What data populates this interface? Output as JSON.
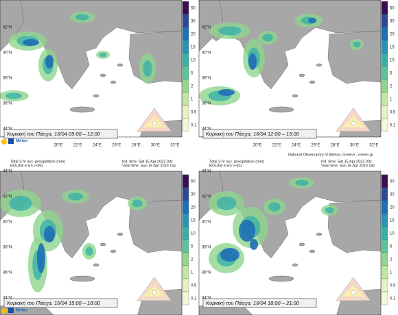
{
  "logo": "Meteo",
  "footer": "National Observatory of Athens, Greece - meteo.gr",
  "lat_labels": [
    "44°N",
    "42°N",
    "40°N",
    "38°N",
    "36°N",
    "34°N"
  ],
  "lon_labels": [
    "20°E",
    "22°E",
    "24°E",
    "26°E",
    "28°E",
    "30°E",
    "32°E"
  ],
  "colorbar_labels": [
    "50",
    "30",
    "20",
    "15",
    "10",
    "5",
    "2",
    "1",
    "0.5",
    "0.1"
  ],
  "panels": [
    {
      "caption": "Κυριακή του Πάσχα, 16/04 09:00 – 12:00"
    },
    {
      "caption": "Κυριακή του Πάσχα, 16/04 12:00 – 15:00"
    },
    {
      "caption": "Κυριακή του Πάσχα, 16/04 15:00 – 18:00",
      "header_left": [
        "Total 3-hr acc. precipitation (mm)",
        "BOLAM 6 km t+39z"
      ],
      "header_right": [
        "Init. time: Sat 15 Apr 2023 00z",
        "Valid time: Sun 16 Apr 2023 15z"
      ]
    },
    {
      "caption": "Κυριακή του Πάσχα, 16/04 18:00 – 21:00",
      "header_left": [
        "Total 3-hr acc. precipitation (mm)",
        "BOLAM 6 km t+42z"
      ],
      "header_right": [
        "Init. time: Sat 15 Apr 2023 00z",
        "Valid time: Sun 16 Apr 2023 18z"
      ]
    }
  ]
}
